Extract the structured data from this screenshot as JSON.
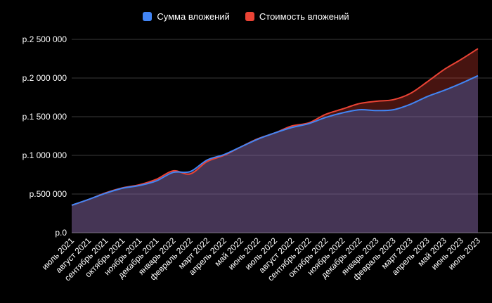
{
  "chart_data": {
    "type": "area",
    "title": "",
    "xlabel": "",
    "ylabel": "",
    "ylim": [
      0,
      2500000
    ],
    "yticks": [
      {
        "value": 0,
        "label": "р.0"
      },
      {
        "value": 500000,
        "label": "р.500 000"
      },
      {
        "value": 1000000,
        "label": "р.1 000 000"
      },
      {
        "value": 1500000,
        "label": "р.1 500 000"
      },
      {
        "value": 2000000,
        "label": "р.2 000 000"
      },
      {
        "value": 2500000,
        "label": "р.2 500 000"
      }
    ],
    "categories": [
      "июль 2021",
      "август 2021",
      "сентябрь 2021",
      "октябрь 2021",
      "ноябрь 2021",
      "декабрь 2021",
      "январь 2022",
      "февраль 2022",
      "март 2022",
      "апрель 2022",
      "май 2022",
      "июнь 2022",
      "июль 2022",
      "август 2022",
      "сентябрь 2022",
      "октябрь 2022",
      "ноябрь 2022",
      "декабрь 2022",
      "январь 2023",
      "февраль 2023",
      "март 2023",
      "апрель 2023",
      "май 2023",
      "июнь 2023",
      "июль 2023"
    ],
    "grid": true,
    "legend_position": "top-center",
    "series": [
      {
        "name": "Сумма вложений",
        "color": "#4285f4",
        "values": [
          355000,
          430000,
          510000,
          575000,
          610000,
          670000,
          780000,
          790000,
          940000,
          1010000,
          1110000,
          1210000,
          1290000,
          1360000,
          1410000,
          1490000,
          1550000,
          1590000,
          1580000,
          1590000,
          1660000,
          1760000,
          1840000,
          1930000,
          2030000
        ]
      },
      {
        "name": "Стоимость вложений",
        "color": "#ea4335",
        "values": [
          355000,
          430000,
          515000,
          580000,
          620000,
          690000,
          800000,
          760000,
          920000,
          1000000,
          1110000,
          1215000,
          1290000,
          1380000,
          1420000,
          1530000,
          1600000,
          1670000,
          1700000,
          1720000,
          1800000,
          1950000,
          2110000,
          2240000,
          2380000
        ]
      }
    ]
  }
}
